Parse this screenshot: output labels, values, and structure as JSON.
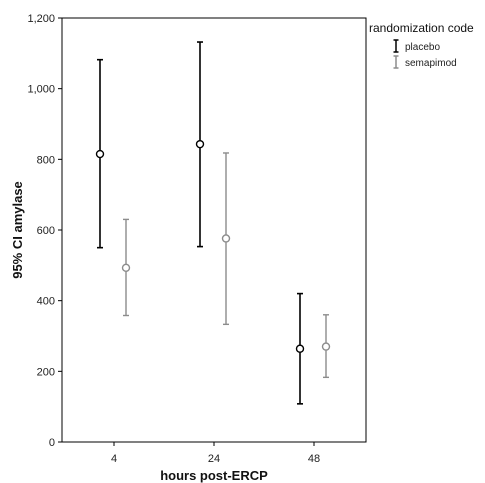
{
  "chart_data": {
    "type": "error-bar",
    "xlabel": "hours post-ERCP",
    "ylabel": "95% CI amylase",
    "ylim": [
      0,
      1200
    ],
    "yticks": [
      0,
      200,
      400,
      600,
      800,
      1000,
      1200
    ],
    "ytick_labels": [
      "0",
      "200",
      "400",
      "600",
      "800",
      "1,000",
      "1,200"
    ],
    "categories": [
      "4",
      "24",
      "48"
    ],
    "legend_title": "randomization code",
    "legend_position": "top-right, outside plot",
    "grid": false,
    "series": [
      {
        "name": "placebo",
        "color": "#000000",
        "points": [
          {
            "category": "4",
            "mean": 815,
            "lower": 550,
            "upper": 1082
          },
          {
            "category": "24",
            "mean": 843,
            "lower": 553,
            "upper": 1132
          },
          {
            "category": "48",
            "mean": 264,
            "lower": 108,
            "upper": 420
          }
        ]
      },
      {
        "name": "semapimod",
        "color": "#8c8c8c",
        "points": [
          {
            "category": "4",
            "mean": 493,
            "lower": 358,
            "upper": 630
          },
          {
            "category": "24",
            "mean": 576,
            "lower": 333,
            "upper": 818
          },
          {
            "category": "48",
            "mean": 270,
            "lower": 183,
            "upper": 360
          }
        ]
      }
    ]
  }
}
